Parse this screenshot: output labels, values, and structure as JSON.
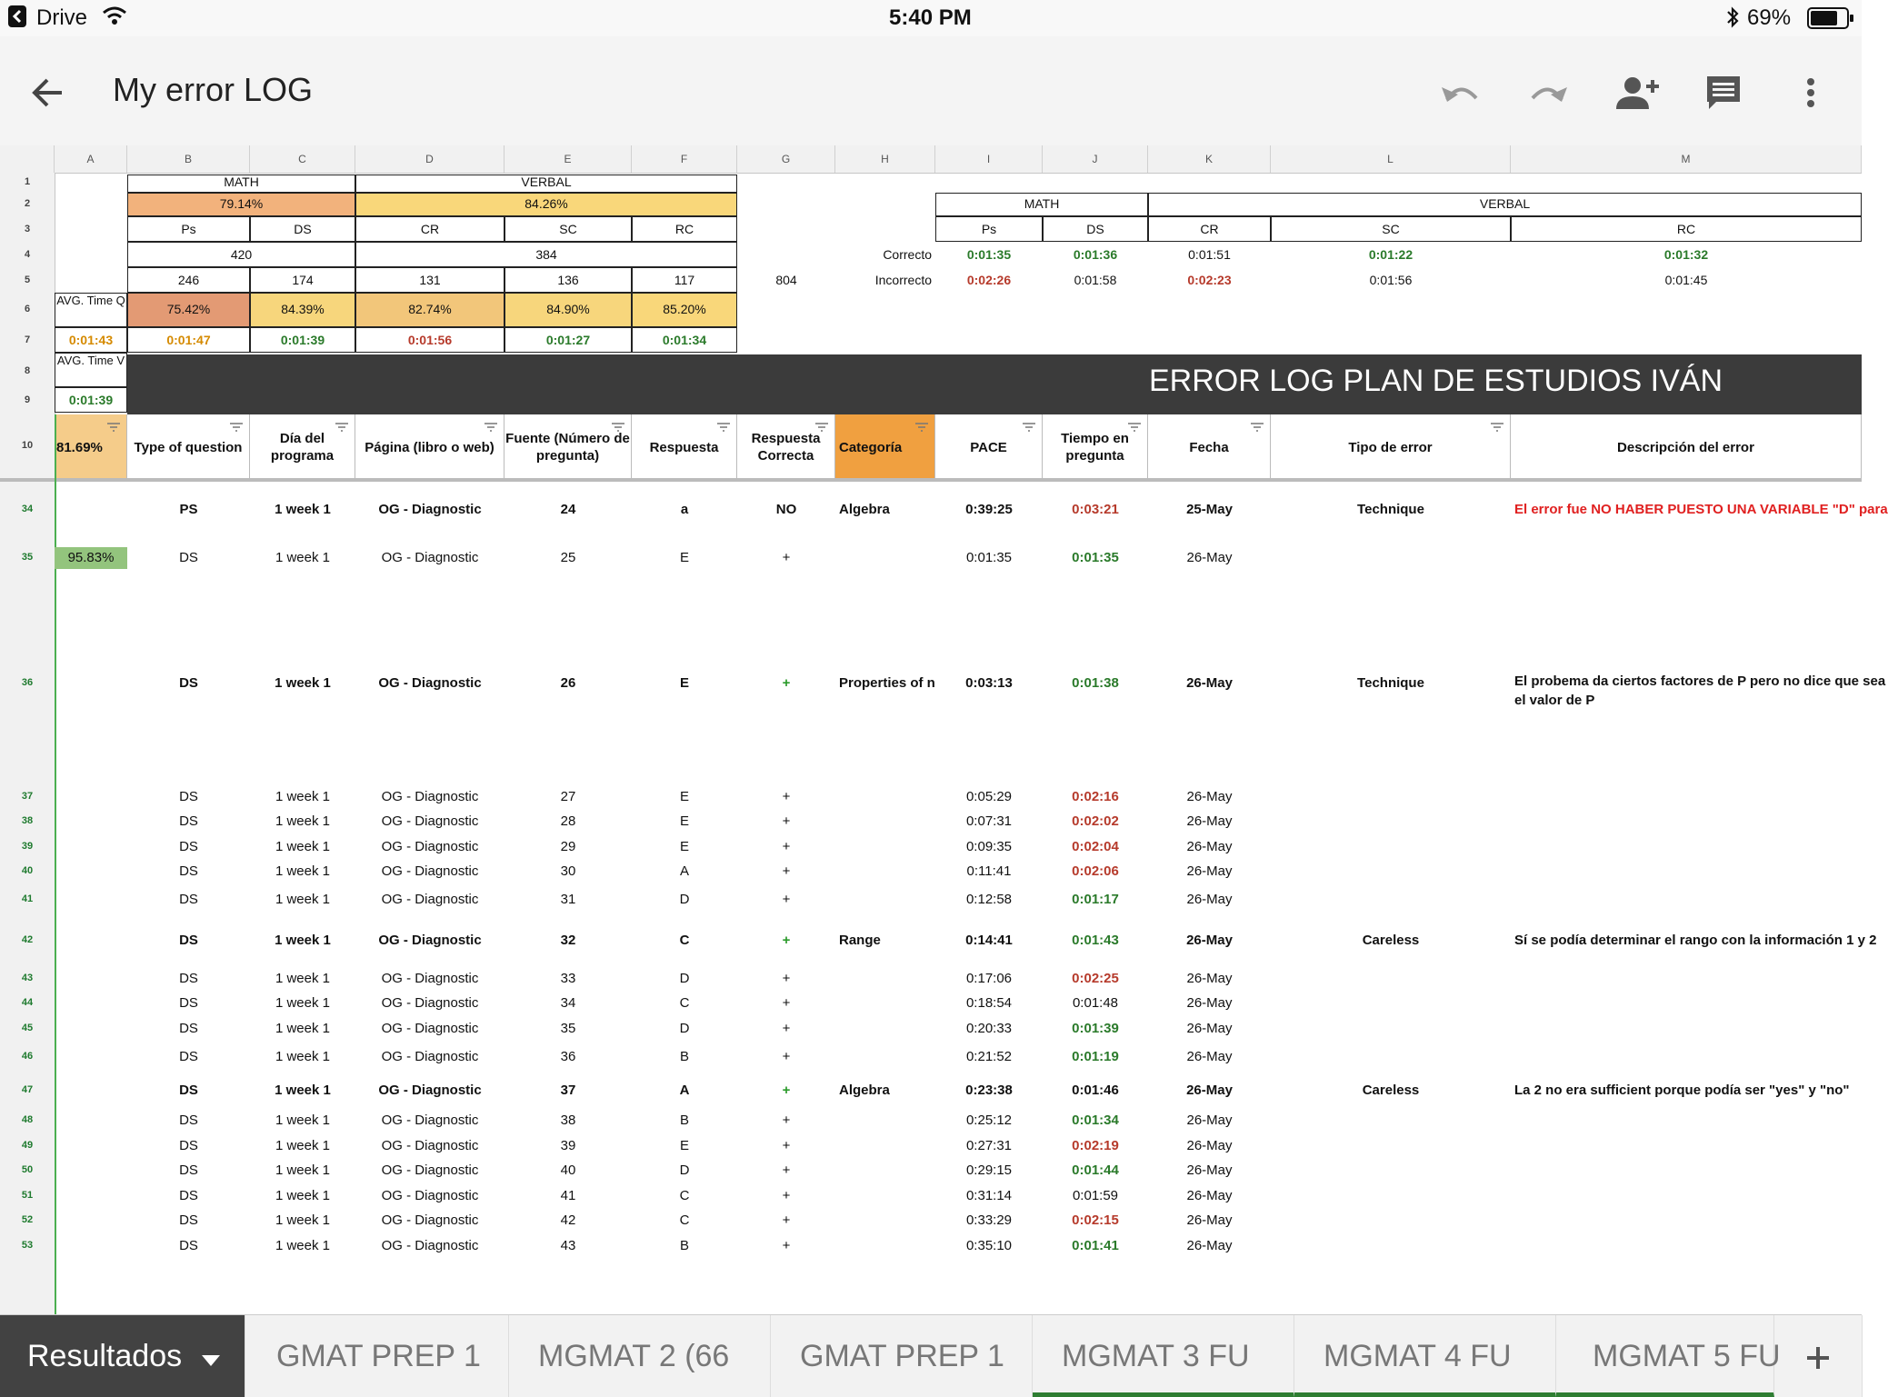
{
  "status": {
    "back_app": "Drive",
    "time": "5:40 PM",
    "battery": "69%"
  },
  "toolbar": {
    "title": "My error LOG"
  },
  "columns": [
    "A",
    "B",
    "C",
    "D",
    "E",
    "F",
    "G",
    "H",
    "I",
    "J",
    "K",
    "L",
    "M"
  ],
  "rownums_top": [
    "1",
    "2",
    "3",
    "4",
    "5",
    "6",
    "7",
    "8",
    "9",
    "10"
  ],
  "summary": {
    "math_label": "MATH",
    "verbal_label": "VERBAL",
    "math_pct": "79.14%",
    "verbal_pct": "84.26%",
    "ps": "Ps",
    "ds": "DS",
    "cr": "CR",
    "sc": "SC",
    "rc": "RC",
    "math_total": "420",
    "verbal_total": "384",
    "ps_n": "246",
    "ds_n": "174",
    "cr_n": "131",
    "sc_n": "136",
    "rc_n": "117",
    "g5": "804",
    "avg_q_label": "AVG. Time Q",
    "avg_q": "0:01:43",
    "ps_pct": "75.42%",
    "ds_pct": "84.39%",
    "cr_pct": "82.74%",
    "sc_pct": "84.90%",
    "rc_pct": "85.20%",
    "ps_t": "0:01:47",
    "ds_t": "0:01:39",
    "cr_t": "0:01:56",
    "sc_t": "0:01:27",
    "rc_t": "0:01:34",
    "avg_v_label": "AVG. Time V",
    "avg_v": "0:01:39"
  },
  "right_table": {
    "math_label": "MATH",
    "verbal_label": "VERBAL",
    "ps": "Ps",
    "ds": "DS",
    "cr": "CR",
    "sc": "SC",
    "rc": "RC",
    "correct_label": "Correcto",
    "incorrect_label": "Incorrecto",
    "correct": [
      "0:01:35",
      "0:01:36",
      "0:01:51",
      "0:01:22",
      "0:01:32"
    ],
    "incorrect": [
      "0:02:26",
      "0:01:58",
      "0:02:23",
      "0:01:56",
      "0:01:45"
    ]
  },
  "banner": "ERROR LOG PLAN DE ESTUDIOS IVÁN",
  "headers": {
    "a": "81.69%",
    "b": "Type of question",
    "c": "Día del programa",
    "d": "Página (libro o web)",
    "e": "Fuente (Número de pregunta)",
    "f": "Respuesta",
    "g": "Respuesta Correcta",
    "h": "Categoría",
    "i": "PACE",
    "j": "Tiempo en pregunta",
    "k": "Fecha",
    "l": "Tipo de error",
    "m": "Descripción del error"
  },
  "a35": "95.83%",
  "rows": [
    {
      "n": "34",
      "type": "PS",
      "day": "1 week 1",
      "page": "OG - Diagnostic",
      "num": "24",
      "resp": "a",
      "corr": "NO",
      "cat": "Algebra",
      "pace": "0:39:25",
      "time": "0:03:21",
      "date": "25-May",
      "err": "Technique",
      "desc": "El error fue NO HABER PUESTO UNA VARIABLE \"D\" para"
    },
    {
      "n": "35",
      "type": "DS",
      "day": "1 week 1",
      "page": "OG - Diagnostic",
      "num": "25",
      "resp": "E",
      "corr": "+",
      "cat": "",
      "pace": "0:01:35",
      "time": "0:01:35",
      "date": "26-May",
      "err": "",
      "desc": ""
    },
    {
      "n": "36",
      "type": "DS",
      "day": "1 week 1",
      "page": "OG - Diagnostic",
      "num": "26",
      "resp": "E",
      "corr": "+",
      "cat": "Properties of n",
      "pace": "0:03:13",
      "time": "0:01:38",
      "date": "26-May",
      "err": "Technique",
      "desc": "El probema da ciertos factores de P pero no dice que sea",
      "desc2": "el valor de P"
    },
    {
      "n": "37",
      "type": "DS",
      "day": "1 week 1",
      "page": "OG - Diagnostic",
      "num": "27",
      "resp": "E",
      "corr": "+",
      "cat": "",
      "pace": "0:05:29",
      "time": "0:02:16",
      "date": "26-May",
      "err": "",
      "desc": ""
    },
    {
      "n": "38",
      "type": "DS",
      "day": "1 week 1",
      "page": "OG - Diagnostic",
      "num": "28",
      "resp": "E",
      "corr": "+",
      "cat": "",
      "pace": "0:07:31",
      "time": "0:02:02",
      "date": "26-May",
      "err": "",
      "desc": ""
    },
    {
      "n": "39",
      "type": "DS",
      "day": "1 week 1",
      "page": "OG - Diagnostic",
      "num": "29",
      "resp": "E",
      "corr": "+",
      "cat": "",
      "pace": "0:09:35",
      "time": "0:02:04",
      "date": "26-May",
      "err": "",
      "desc": ""
    },
    {
      "n": "40",
      "type": "DS",
      "day": "1 week 1",
      "page": "OG - Diagnostic",
      "num": "30",
      "resp": "A",
      "corr": "+",
      "cat": "",
      "pace": "0:11:41",
      "time": "0:02:06",
      "date": "26-May",
      "err": "",
      "desc": ""
    },
    {
      "n": "41",
      "type": "DS",
      "day": "1 week 1",
      "page": "OG - Diagnostic",
      "num": "31",
      "resp": "D",
      "corr": "+",
      "cat": "",
      "pace": "0:12:58",
      "time": "0:01:17",
      "date": "26-May",
      "err": "",
      "desc": ""
    },
    {
      "n": "42",
      "type": "DS",
      "day": "1 week 1",
      "page": "OG - Diagnostic",
      "num": "32",
      "resp": "C",
      "corr": "+",
      "cat": "Range",
      "pace": "0:14:41",
      "time": "0:01:43",
      "date": "26-May",
      "err": "Careless",
      "desc": "Sí se podía determinar el rango con la información 1 y 2"
    },
    {
      "n": "43",
      "type": "DS",
      "day": "1 week 1",
      "page": "OG - Diagnostic",
      "num": "33",
      "resp": "D",
      "corr": "+",
      "cat": "",
      "pace": "0:17:06",
      "time": "0:02:25",
      "date": "26-May",
      "err": "",
      "desc": ""
    },
    {
      "n": "44",
      "type": "DS",
      "day": "1 week 1",
      "page": "OG - Diagnostic",
      "num": "34",
      "resp": "C",
      "corr": "+",
      "cat": "",
      "pace": "0:18:54",
      "time": "0:01:48",
      "date": "26-May",
      "err": "",
      "desc": ""
    },
    {
      "n": "45",
      "type": "DS",
      "day": "1 week 1",
      "page": "OG - Diagnostic",
      "num": "35",
      "resp": "D",
      "corr": "+",
      "cat": "",
      "pace": "0:20:33",
      "time": "0:01:39",
      "date": "26-May",
      "err": "",
      "desc": ""
    },
    {
      "n": "46",
      "type": "DS",
      "day": "1 week 1",
      "page": "OG - Diagnostic",
      "num": "36",
      "resp": "B",
      "corr": "+",
      "cat": "",
      "pace": "0:21:52",
      "time": "0:01:19",
      "date": "26-May",
      "err": "",
      "desc": ""
    },
    {
      "n": "47",
      "type": "DS",
      "day": "1 week 1",
      "page": "OG - Diagnostic",
      "num": "37",
      "resp": "A",
      "corr": "+",
      "cat": "Algebra",
      "pace": "0:23:38",
      "time": "0:01:46",
      "date": "26-May",
      "err": "Careless",
      "desc": "La 2 no era sufficient porque podía ser \"yes\" y \"no\""
    },
    {
      "n": "48",
      "type": "DS",
      "day": "1 week 1",
      "page": "OG - Diagnostic",
      "num": "38",
      "resp": "B",
      "corr": "+",
      "cat": "",
      "pace": "0:25:12",
      "time": "0:01:34",
      "date": "26-May",
      "err": "",
      "desc": ""
    },
    {
      "n": "49",
      "type": "DS",
      "day": "1 week 1",
      "page": "OG - Diagnostic",
      "num": "39",
      "resp": "E",
      "corr": "+",
      "cat": "",
      "pace": "0:27:31",
      "time": "0:02:19",
      "date": "26-May",
      "err": "",
      "desc": ""
    },
    {
      "n": "50",
      "type": "DS",
      "day": "1 week 1",
      "page": "OG - Diagnostic",
      "num": "40",
      "resp": "D",
      "corr": "+",
      "cat": "",
      "pace": "0:29:15",
      "time": "0:01:44",
      "date": "26-May",
      "err": "",
      "desc": ""
    },
    {
      "n": "51",
      "type": "DS",
      "day": "1 week 1",
      "page": "OG - Diagnostic",
      "num": "41",
      "resp": "C",
      "corr": "+",
      "cat": "",
      "pace": "0:31:14",
      "time": "0:01:59",
      "date": "26-May",
      "err": "",
      "desc": ""
    },
    {
      "n": "52",
      "type": "DS",
      "day": "1 week 1",
      "page": "OG - Diagnostic",
      "num": "42",
      "resp": "C",
      "corr": "+",
      "cat": "",
      "pace": "0:33:29",
      "time": "0:02:15",
      "date": "26-May",
      "err": "",
      "desc": ""
    },
    {
      "n": "53",
      "type": "DS",
      "day": "1 week 1",
      "page": "OG - Diagnostic",
      "num": "43",
      "resp": "B",
      "corr": "+",
      "cat": "",
      "pace": "0:35:10",
      "time": "0:01:41",
      "date": "26-May",
      "err": "",
      "desc": ""
    }
  ],
  "tabs": [
    "Resultados",
    "GMAT PREP 1",
    "MGMAT 2 (66",
    "GMAT PREP 1",
    "MGMAT 3 FU",
    "MGMAT 4 FU",
    "MGMAT 5 FU"
  ],
  "colors": {
    "accent_green": "#2a7a2a",
    "time_red": "#b63a2b",
    "orange_header": "#f0a040",
    "banner": "#3b3b3b"
  }
}
